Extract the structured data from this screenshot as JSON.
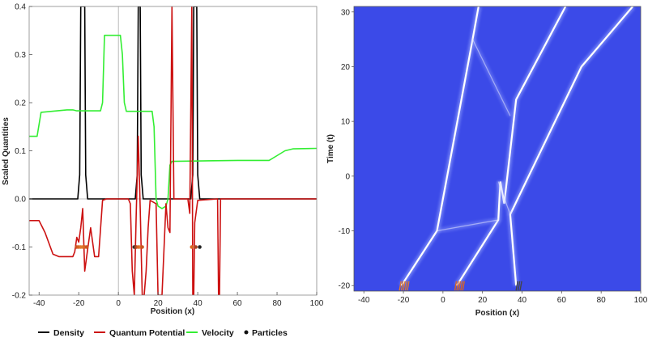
{
  "chart_data": [
    {
      "type": "line",
      "xlabel": "Position (x)",
      "ylabel": "Scaled Quantities",
      "xlim": [
        -45,
        100
      ],
      "ylim": [
        -0.2,
        0.4
      ],
      "xticks": [
        -40,
        -20,
        0,
        20,
        40,
        60,
        80,
        100
      ],
      "yticks": [
        -0.2,
        -0.1,
        0.0,
        0.1,
        0.2,
        0.3,
        0.4
      ],
      "ytick_labels": [
        "-0.2",
        "-0.1",
        "0.0",
        "0.1",
        "0.2",
        "0.3",
        "0.4"
      ],
      "legend_position": "bottom",
      "colors": {
        "density": "#000000",
        "potential": "#cc1111",
        "velocity": "#33ee33",
        "particles": "#111111"
      },
      "series": [
        {
          "name": "Density",
          "color": "#000000",
          "points": [
            [
              -45,
              0
            ],
            [
              -20.5,
              0
            ],
            [
              -19.5,
              0.05
            ],
            [
              -19,
              0.4
            ],
            [
              -17,
              0.4
            ],
            [
              -16.5,
              0.05
            ],
            [
              -15.5,
              0
            ],
            [
              8.5,
              0
            ],
            [
              9.5,
              0.05
            ],
            [
              10,
              0.4
            ],
            [
              11,
              0.4
            ],
            [
              11.5,
              0.05
            ],
            [
              12.5,
              0
            ],
            [
              36.5,
              0
            ],
            [
              37.5,
              0.05
            ],
            [
              38,
              0.4
            ],
            [
              39.5,
              0.4
            ],
            [
              40,
              0.05
            ],
            [
              41,
              0
            ],
            [
              100,
              0
            ]
          ]
        },
        {
          "name": "Velocity",
          "color": "#33ee33",
          "points": [
            [
              -45,
              0.13
            ],
            [
              -41,
              0.13
            ],
            [
              -39,
              0.18
            ],
            [
              -26,
              0.185
            ],
            [
              -24,
              0.185
            ],
            [
              -23,
              0.185
            ],
            [
              -21,
              0.183
            ],
            [
              -9,
              0.183
            ],
            [
              -8,
              0.2
            ],
            [
              -7,
              0.34
            ],
            [
              -1,
              0.34
            ],
            [
              1,
              0.34
            ],
            [
              2,
              0.3
            ],
            [
              3,
              0.2
            ],
            [
              4,
              0.182
            ],
            [
              17,
              0.182
            ],
            [
              18,
              0.15
            ],
            [
              19,
              0.0
            ],
            [
              20,
              -0.015
            ],
            [
              22,
              -0.02
            ],
            [
              24,
              -0.015
            ],
            [
              25,
              0.0
            ],
            [
              26,
              0.07
            ],
            [
              27,
              0.078
            ],
            [
              60,
              0.08
            ],
            [
              76,
              0.08
            ],
            [
              80,
              0.09
            ],
            [
              84,
              0.1
            ],
            [
              88,
              0.104
            ],
            [
              100,
              0.105
            ]
          ]
        },
        {
          "name": "Quantum Potential",
          "color": "#cc1111",
          "points": [
            [
              -45,
              -0.045
            ],
            [
              -40,
              -0.045
            ],
            [
              -37,
              -0.07
            ],
            [
              -33,
              -0.115
            ],
            [
              -30,
              -0.12
            ],
            [
              -23,
              -0.12
            ],
            [
              -22,
              -0.11
            ],
            [
              -21,
              -0.08
            ],
            [
              -20,
              -0.09
            ],
            [
              -19,
              -0.06
            ],
            [
              -18,
              -0.02
            ],
            [
              -17,
              -0.15
            ],
            [
              -16,
              -0.12
            ],
            [
              -14,
              -0.06
            ],
            [
              -12,
              -0.12
            ],
            [
              -10,
              -0.12
            ],
            [
              -8,
              -0.003
            ],
            [
              -6,
              0.0
            ],
            [
              5,
              0.0
            ],
            [
              6,
              -0.01
            ],
            [
              7,
              -0.15
            ],
            [
              8,
              -0.2
            ],
            [
              9,
              -0.03
            ],
            [
              10,
              0.13
            ],
            [
              11,
              -0.02
            ],
            [
              12,
              -0.2
            ],
            [
              13,
              -0.2
            ],
            [
              14,
              -0.15
            ],
            [
              15,
              -0.06
            ],
            [
              16,
              -0.003
            ],
            [
              19,
              -0.01
            ],
            [
              20,
              -0.2
            ],
            [
              22,
              -0.2
            ],
            [
              24,
              -0.01
            ],
            [
              25,
              -0.06
            ],
            [
              26,
              -0.07
            ],
            [
              27,
              0.4
            ],
            [
              28,
              0.0
            ],
            [
              35,
              0.0
            ],
            [
              36,
              -0.03
            ],
            [
              37,
              0.4
            ],
            [
              37.5,
              -0.2
            ],
            [
              38,
              -0.2
            ],
            [
              38.5,
              -0.05
            ],
            [
              40,
              -0.003
            ],
            [
              50,
              0.0
            ],
            [
              50.5,
              -0.2
            ],
            [
              51,
              -0.2
            ],
            [
              51.5,
              0.0
            ],
            [
              100,
              0.0
            ]
          ]
        }
      ],
      "particles": {
        "name": "Particles",
        "points": [
          [
            -21,
            -0.1
          ],
          [
            -20,
            -0.1
          ],
          [
            -19,
            -0.1
          ],
          [
            -18,
            -0.1
          ],
          [
            -17,
            -0.1
          ],
          [
            -16,
            -0.1
          ],
          [
            8,
            -0.1
          ],
          [
            9,
            -0.1
          ],
          [
            10,
            -0.1
          ],
          [
            11,
            -0.1
          ],
          [
            12,
            -0.1
          ],
          [
            37,
            -0.1
          ],
          [
            39,
            -0.1
          ],
          [
            41,
            -0.1
          ]
        ],
        "colors": [
          "#cc5522",
          "#d96622",
          "#e07a30",
          "#e07a30",
          "#d96622",
          "#cc5522",
          "#333333",
          "#aa4422",
          "#d96622",
          "#e07a30",
          "#cc5522",
          "#d96622",
          "#aa4422",
          "#222222"
        ]
      },
      "legend": [
        "Density",
        "Quantum Potential",
        "Velocity",
        "Particles"
      ]
    },
    {
      "type": "heatmap",
      "xlabel": "Position (x)",
      "ylabel": "Time (t)",
      "xlim": [
        -45,
        100
      ],
      "ylim": [
        -21,
        31
      ],
      "xticks": [
        -40,
        -20,
        0,
        20,
        40,
        60,
        80,
        100
      ],
      "yticks": [
        -20,
        -10,
        0,
        10,
        20,
        30
      ],
      "background_color": "#3b4ae8",
      "trajectory_color": "#ffffff",
      "trajectories": [
        [
          [
            -21,
            -20
          ],
          [
            -3,
            -10
          ],
          [
            15,
            25
          ],
          [
            18,
            31
          ]
        ],
        [
          [
            7,
            -20
          ],
          [
            28,
            -8
          ],
          [
            29,
            -1
          ],
          [
            31,
            -5
          ],
          [
            37,
            14
          ],
          [
            62,
            31
          ]
        ],
        [
          [
            37,
            -20
          ],
          [
            34,
            -7
          ],
          [
            46,
            2
          ],
          [
            70,
            20
          ],
          [
            96,
            31
          ]
        ],
        [
          [
            -3,
            -10
          ],
          [
            28,
            -8
          ]
        ],
        [
          [
            28,
            -1
          ],
          [
            34,
            -7
          ]
        ],
        [
          [
            15,
            25
          ],
          [
            34,
            11
          ]
        ]
      ],
      "particle_lines": [
        {
          "x": [
            -22,
            -21,
            -20,
            -19,
            -18
          ],
          "color": "#e07a30"
        },
        {
          "x": [
            6,
            7,
            8,
            9,
            10
          ],
          "color": "#d96622"
        },
        {
          "x": [
            37,
            38,
            39
          ],
          "color": "#444444"
        }
      ]
    }
  ]
}
